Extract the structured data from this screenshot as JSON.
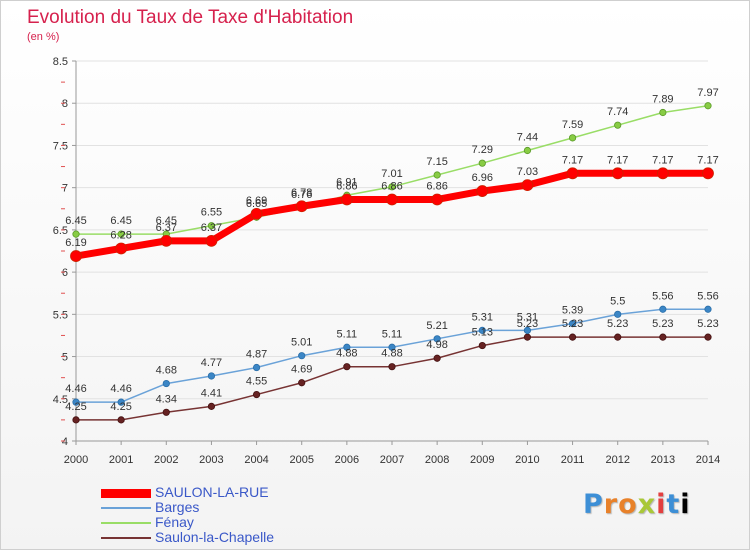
{
  "header": {
    "title": "Evolution du Taux de Taxe d'Habitation",
    "unit": "(en %)"
  },
  "brand": {
    "text": "Proxiti"
  },
  "chart_data": {
    "type": "line",
    "title": "Evolution du Taux de Taxe d'Habitation",
    "subtitle": "(en %)",
    "x": [
      2000,
      2001,
      2002,
      2003,
      2004,
      2005,
      2006,
      2007,
      2008,
      2009,
      2010,
      2011,
      2012,
      2013,
      2014
    ],
    "ylim": [
      4,
      8.5
    ],
    "y_ticks": [
      4,
      4.5,
      5,
      5.5,
      6,
      6.5,
      7,
      7.5,
      8,
      8.5
    ],
    "y_tick_labels": [
      "4",
      "4.5",
      "5",
      "5.5",
      "6",
      "6.5",
      "7",
      "7.5",
      "8",
      "8.5"
    ],
    "grid": "horizontal",
    "legend_position": "bottom-left",
    "series": [
      {
        "name": "SAULON-LA-RUE",
        "color": "#ff0000",
        "values": [
          6.19,
          6.28,
          6.37,
          6.37,
          6.69,
          6.78,
          6.86,
          6.86,
          6.86,
          6.96,
          7.03,
          7.17,
          7.17,
          7.17,
          7.17
        ]
      },
      {
        "name": "Barges",
        "color": "#6aa2d8",
        "values": [
          4.46,
          4.46,
          4.68,
          4.77,
          4.87,
          5.01,
          5.11,
          5.11,
          5.21,
          5.31,
          5.31,
          5.39,
          5.5,
          5.56,
          5.56
        ]
      },
      {
        "name": "Fénay",
        "color": "#99dd66",
        "values": [
          6.45,
          6.45,
          6.45,
          6.55,
          6.65,
          6.76,
          6.91,
          7.01,
          7.15,
          7.29,
          7.44,
          7.59,
          7.74,
          7.89,
          7.97
        ]
      },
      {
        "name": "Saulon-la-Chapelle",
        "color": "#773333",
        "values": [
          4.25,
          4.25,
          4.34,
          4.41,
          4.55,
          4.69,
          4.88,
          4.88,
          4.98,
          5.13,
          5.23,
          5.23,
          5.23,
          5.23,
          5.23
        ]
      }
    ]
  }
}
